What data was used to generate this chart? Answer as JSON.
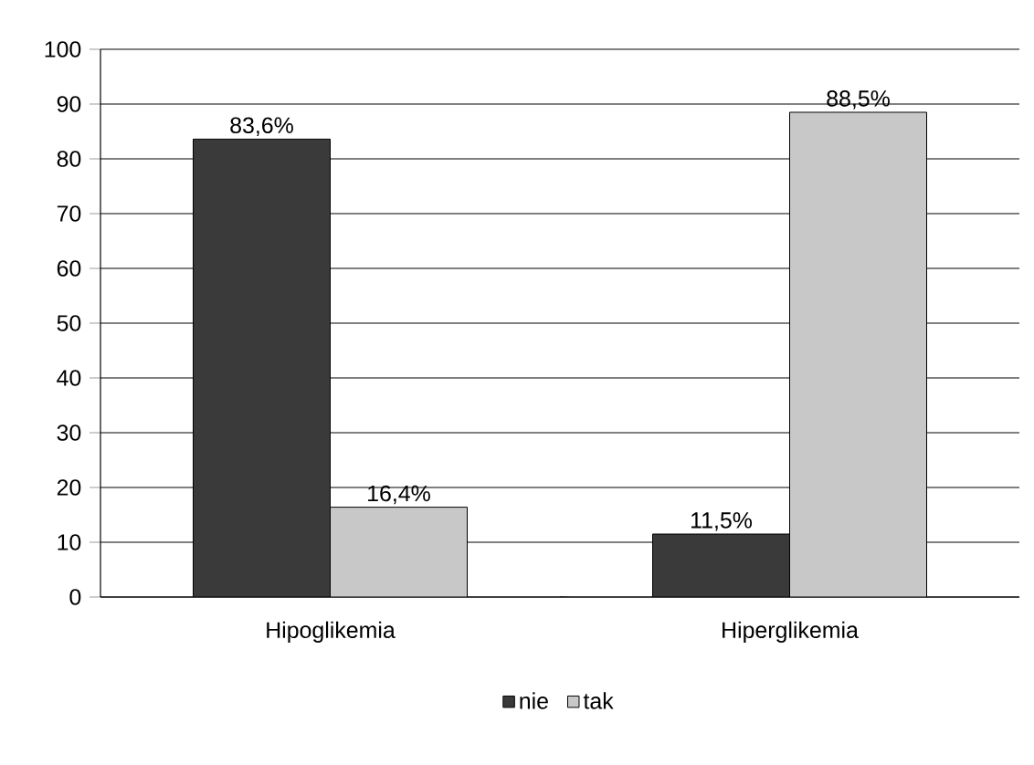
{
  "chart_data": {
    "type": "bar",
    "categories": [
      "Hipoglikemia",
      "Hiperglikemia"
    ],
    "series": [
      {
        "name": "nie",
        "color": "#3a3a3a",
        "values": [
          83.6,
          11.5
        ],
        "value_labels": [
          "83,6%",
          "11,5%"
        ]
      },
      {
        "name": "tak",
        "color": "#c8c8c8",
        "values": [
          16.4,
          88.5
        ],
        "value_labels": [
          "16,4%",
          "88,5%"
        ]
      }
    ],
    "ylim": [
      0,
      100
    ],
    "yticks": [
      0,
      10,
      20,
      30,
      40,
      50,
      60,
      70,
      80,
      90,
      100
    ],
    "grid": "y",
    "legend": "bottom"
  }
}
